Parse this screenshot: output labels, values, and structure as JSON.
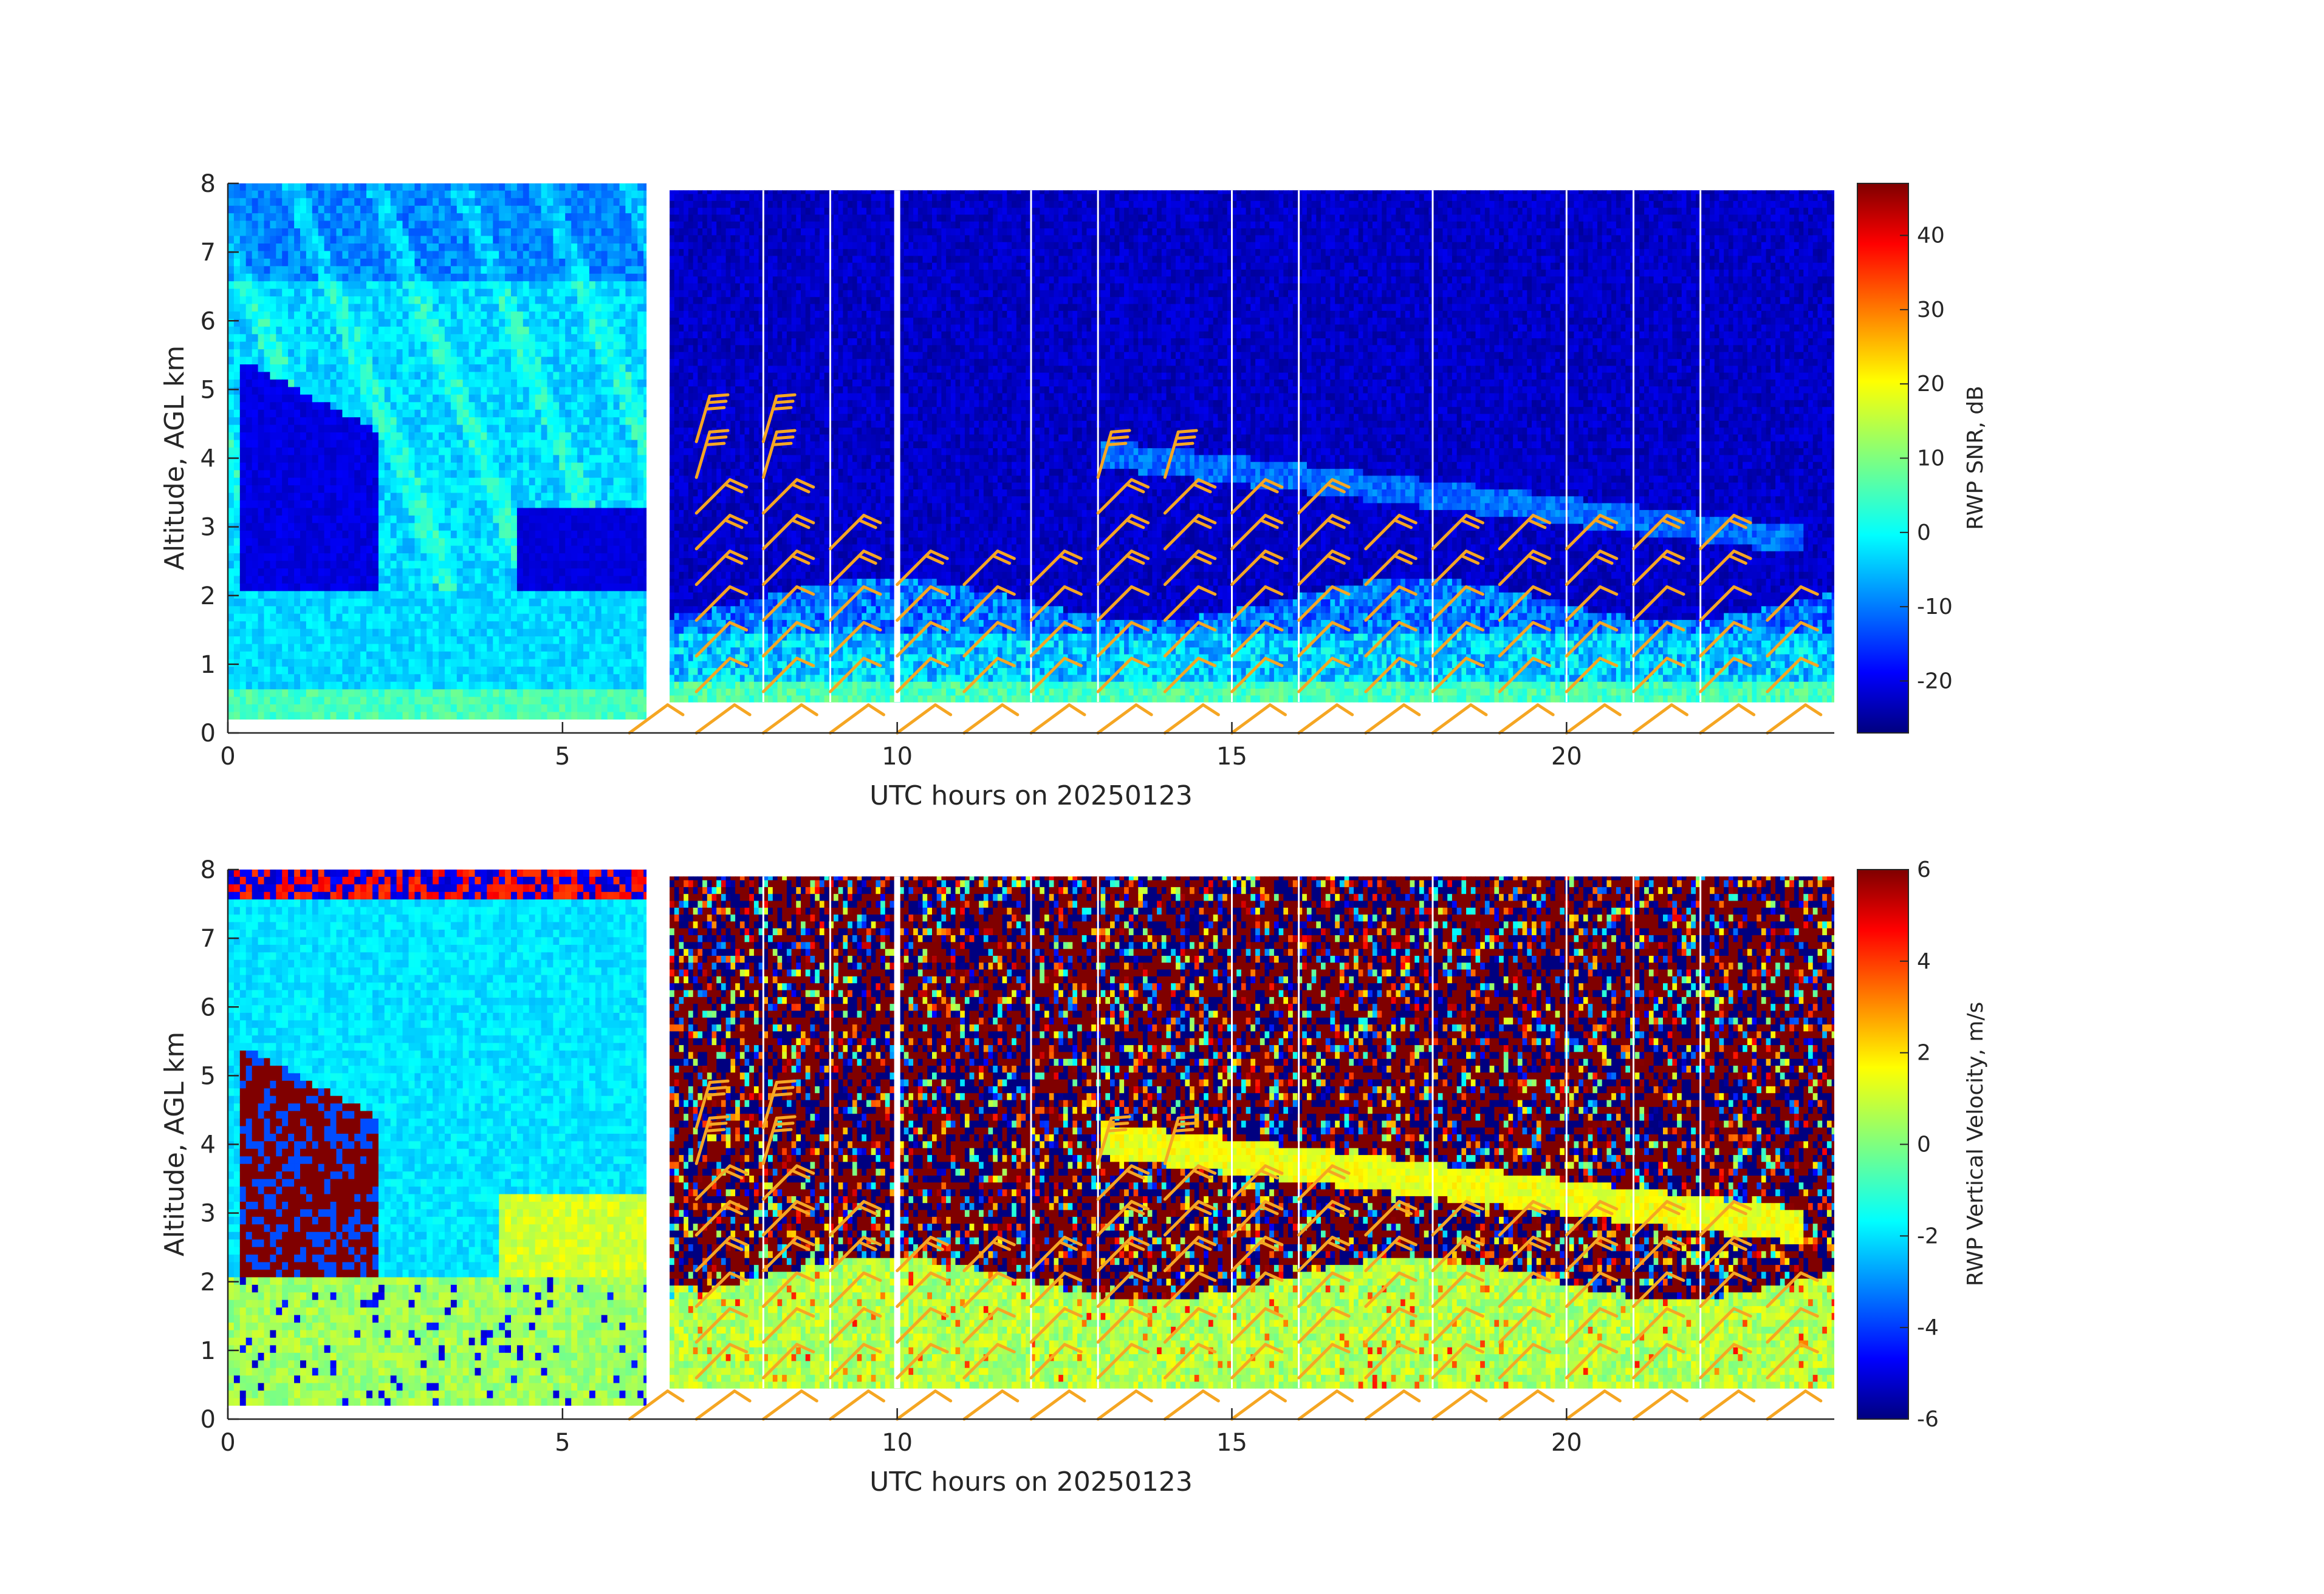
{
  "colors": {
    "background": "#ffffff",
    "axis": "#262626",
    "gap_white": "#ffffff",
    "wind_barb": "#f5a623",
    "colormap": "jet"
  },
  "chart_data": [
    {
      "type": "heatmap",
      "panel": "top",
      "variable": "RWP SNR",
      "xlabel": "UTC hours on 20250123",
      "ylabel": "Altitude, AGL km",
      "colorbar_label": "RWP SNR, dB",
      "xlim": [
        0,
        24
      ],
      "ylim": [
        0,
        8
      ],
      "xticks": [
        0,
        5,
        10,
        15,
        20
      ],
      "yticks": [
        0,
        1,
        2,
        3,
        4,
        5,
        6,
        7,
        8
      ],
      "clim": [
        -27,
        47
      ],
      "colorbar_ticks": [
        -20,
        -10,
        0,
        10,
        20,
        30,
        40
      ],
      "colorbar_tick_labels": [
        "-20",
        "-10",
        "0",
        "10",
        "20",
        "30",
        "40"
      ],
      "data_segments": [
        {
          "x_range": [
            0,
            6.25
          ],
          "y_range": [
            0.2,
            8.0
          ],
          "description_mode": "lowres"
        },
        {
          "x_range": [
            6.6,
            24
          ],
          "y_range": [
            0.45,
            7.9
          ],
          "description_mode": "highres"
        }
      ],
      "vertical_gaps_hours": [
        8.0,
        9.0,
        10.0,
        12.0,
        13.0,
        15.0,
        16.0,
        18.0,
        20.0,
        21.0,
        22.0
      ]
    },
    {
      "type": "heatmap",
      "panel": "bottom",
      "variable": "RWP Vertical Velocity",
      "xlabel": "UTC hours on 20250123",
      "ylabel": "Altitude, AGL km",
      "colorbar_label": "RWP Vertical Velocity, m/s",
      "xlim": [
        0,
        24
      ],
      "ylim": [
        0,
        8
      ],
      "xticks": [
        0,
        5,
        10,
        15,
        20
      ],
      "yticks": [
        0,
        1,
        2,
        3,
        4,
        5,
        6,
        7,
        8
      ],
      "clim": [
        -6,
        6
      ],
      "colorbar_ticks": [
        -6,
        -4,
        -2,
        0,
        2,
        4,
        6
      ],
      "colorbar_tick_labels": [
        "-6",
        "-4",
        "-2",
        "0",
        "2",
        "4",
        "6"
      ],
      "data_segments": [
        {
          "x_range": [
            0,
            6.25
          ],
          "y_range": [
            0.2,
            8.0
          ],
          "description_mode": "lowres"
        },
        {
          "x_range": [
            6.6,
            24
          ],
          "y_range": [
            0.45,
            7.9
          ],
          "description_mode": "highres"
        }
      ],
      "vertical_gaps_hours": [
        8.0,
        9.0,
        10.0,
        12.0,
        13.0,
        15.0,
        16.0,
        18.0,
        20.0,
        21.0,
        22.0
      ]
    }
  ],
  "wind_barbs": {
    "surface_barbs": [
      {
        "t": 6.0,
        "z": 0.0
      },
      {
        "t": 7.0,
        "z": 0.0
      },
      {
        "t": 8.0,
        "z": 0.0
      },
      {
        "t": 9.0,
        "z": 0.0
      },
      {
        "t": 10.0,
        "z": 0.0
      },
      {
        "t": 11.0,
        "z": 0.0
      },
      {
        "t": 12.0,
        "z": 0.0
      },
      {
        "t": 13.0,
        "z": 0.0
      },
      {
        "t": 14.0,
        "z": 0.0
      },
      {
        "t": 15.0,
        "z": 0.0
      },
      {
        "t": 16.0,
        "z": 0.0
      },
      {
        "t": 17.0,
        "z": 0.0
      },
      {
        "t": 18.0,
        "z": 0.0
      },
      {
        "t": 19.0,
        "z": 0.0
      },
      {
        "t": 20.0,
        "z": 0.0
      },
      {
        "t": 21.0,
        "z": 0.0
      },
      {
        "t": 22.0,
        "z": 0.0
      },
      {
        "t": 23.0,
        "z": 0.0
      }
    ],
    "profile_times": [
      7,
      8,
      9,
      10,
      11,
      12,
      13,
      14,
      15,
      16,
      17,
      18,
      19,
      20,
      21,
      22,
      23
    ],
    "profile_top_km": [
      4.6,
      4.6,
      2.9,
      2.5,
      2.5,
      2.3,
      4.1,
      4.1,
      3.6,
      3.4,
      3.1,
      3.1,
      3.1,
      2.9,
      2.9,
      2.9,
      2.1
    ],
    "level_spacing_km": 0.52
  }
}
